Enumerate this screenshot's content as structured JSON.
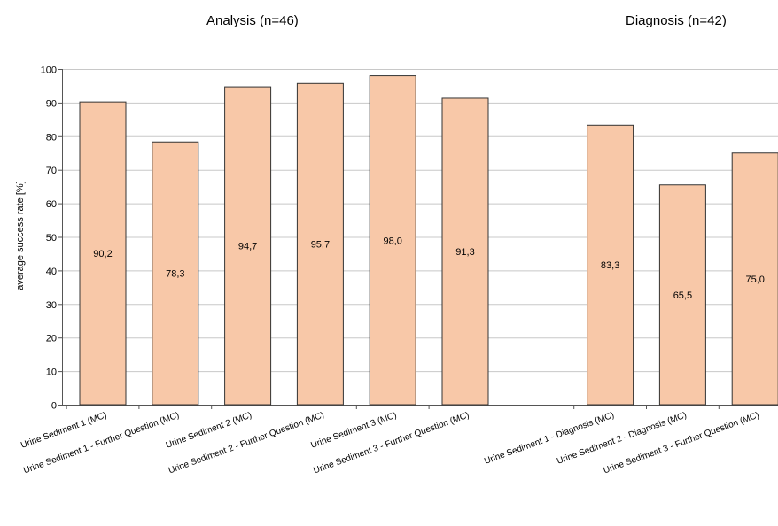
{
  "chart_data": {
    "type": "bar",
    "ylabel": "average success rate  [%]",
    "xlabel": "",
    "ylim": [
      0,
      100
    ],
    "yticks": [
      0,
      10,
      20,
      30,
      40,
      50,
      60,
      70,
      80,
      90,
      100
    ],
    "grid": true,
    "bar_color": "#F8C8A8",
    "bar_edge_color": "#333333",
    "groups": [
      {
        "title": "Analysis  (n=46)",
        "categories": [
          "Urine Sediment 1  (MC)",
          "Urine Sediment 1 - Further Question (MC)",
          "Urine Sediment 2 (MC)",
          "Urine Sediment 2 - Further Question (MC)",
          "Urine Sediment 3 (MC)",
          "Urine Sediment 3 - Further Question (MC)"
        ],
        "values": [
          90.2,
          78.3,
          94.7,
          95.7,
          98.0,
          91.3
        ],
        "value_labels": [
          "90,2",
          "78,3",
          "94,7",
          "95,7",
          "98,0",
          "91,3"
        ]
      },
      {
        "title": "Diagnosis  (n=42)",
        "categories": [
          "Urine Sediment 1  - Diagnosis (MC)",
          "Urine Sediment 2 - Diagnosis (MC)",
          "Urine Sediment 3 - Further Question (MC)"
        ],
        "values": [
          83.3,
          65.5,
          75.0
        ],
        "value_labels": [
          "83,3",
          "65,5",
          "75,0"
        ]
      }
    ]
  }
}
